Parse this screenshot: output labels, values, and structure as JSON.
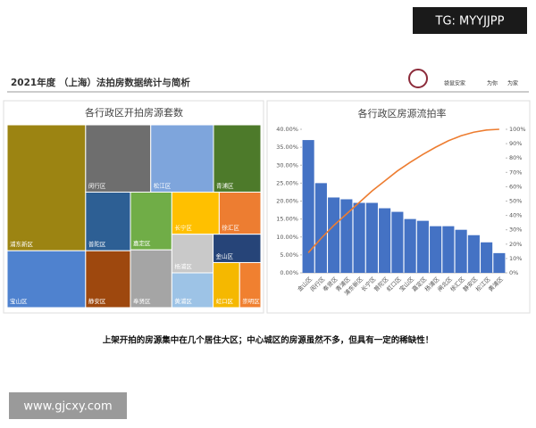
{
  "watermark_top": "TG: MYYJJPP",
  "header": {
    "title": "2021年度 （上海）法拍房数据统计与简析",
    "brand": "袋鼠安家",
    "slogan": [
      "为你",
      "为家"
    ]
  },
  "chart_data": [
    {
      "type": "treemap",
      "title": "各行政区开拍房源套数",
      "categories": [
        "浦东新区",
        "闵行区",
        "宝山区",
        "松江区",
        "青浦区",
        "静安区",
        "普陀区",
        "嘉定区",
        "奉贤区",
        "长宁区",
        "徐汇区",
        "杨浦区",
        "黄浦区",
        "金山区",
        "虹口区",
        "崇明区"
      ],
      "values": [
        124,
        55,
        56,
        53,
        40,
        32,
        33,
        30,
        30,
        25,
        22,
        20,
        18,
        17,
        15,
        12
      ],
      "colors": [
        "#9c8412",
        "#6e6e6e",
        "#4f82cf",
        "#7ea5dc",
        "#4d7a2a",
        "#9e480e",
        "#2d5f94",
        "#70ad47",
        "#a5a5a5",
        "#ffc000",
        "#ed7d31",
        "#c9c9c9",
        "#9dc3e6",
        "#264478",
        "#f5b800",
        "#f08030"
      ]
    },
    {
      "type": "pareto",
      "title": "各行政区房源流拍率",
      "categories": [
        "金山区",
        "闵行区",
        "奉贤区",
        "青浦区",
        "浦东新区",
        "长宁区",
        "普陀区",
        "虹口区",
        "宝山区",
        "嘉定区",
        "杨浦区",
        "闸北区",
        "徐汇区",
        "静安区",
        "松江区",
        "黄浦区"
      ],
      "values": [
        37,
        25,
        21,
        20.5,
        19.5,
        19.5,
        18,
        17,
        15,
        14.5,
        13,
        13,
        12,
        10.5,
        8.5,
        5.5
      ],
      "color": "#4472c4",
      "y2_values": [
        14,
        24,
        33,
        41,
        49,
        57,
        64,
        71,
        77,
        82.5,
        87.5,
        92,
        95.5,
        98,
        99.5,
        100
      ],
      "y2_color": "#ed7d31",
      "ylim": [
        0,
        40
      ],
      "yticks": [
        {
          "value": 0,
          "label": "0.00%"
        },
        {
          "value": 5,
          "label": "5.00%"
        },
        {
          "value": 10,
          "label": "10.00%"
        },
        {
          "value": 15,
          "label": "15.00%"
        },
        {
          "value": 20,
          "label": "20.00%"
        },
        {
          "value": 25,
          "label": "25.00%"
        },
        {
          "value": 30,
          "label": "30.00%"
        },
        {
          "value": 35,
          "label": "35.00%"
        },
        {
          "value": 40,
          "label": "40.00%"
        }
      ],
      "y2lim": [
        0,
        100
      ],
      "y2ticks": [
        {
          "value": 0,
          "label": "0%"
        },
        {
          "value": 10,
          "label": "10%"
        },
        {
          "value": 20,
          "label": "20%"
        },
        {
          "value": 30,
          "label": "30%"
        },
        {
          "value": 40,
          "label": "40%"
        },
        {
          "value": 50,
          "label": "50%"
        },
        {
          "value": 60,
          "label": "60%"
        },
        {
          "value": 70,
          "label": "70%"
        },
        {
          "value": 80,
          "label": "80%"
        },
        {
          "value": 90,
          "label": "90%"
        },
        {
          "value": 100,
          "label": "100%"
        }
      ],
      "grid": false
    }
  ],
  "caption": "上架开拍的房源集中在几个居住大区；中心城区的房源虽然不多，但具有一定的稀缺性！",
  "watermark_bottom": "www.gjcxy.com"
}
